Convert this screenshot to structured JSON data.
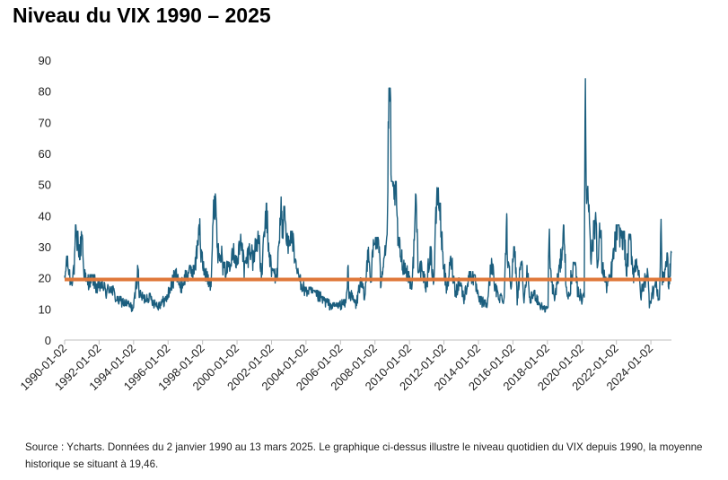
{
  "chart_data": {
    "type": "line",
    "title": "Niveau du VIX 1990 – 2025",
    "xlabel": "",
    "ylabel": "",
    "ylim": [
      0,
      90
    ],
    "y_ticks": [
      0,
      10,
      20,
      30,
      40,
      50,
      60,
      70,
      80,
      90
    ],
    "xlim": [
      "1990-01-02",
      "2025-03-13"
    ],
    "x_ticks": [
      "1990-01-02",
      "1992-01-02",
      "1994-01-02",
      "1996-01-02",
      "1998-01-02",
      "2000-01-02",
      "2002-01-02",
      "2004-01-02",
      "2006-01-02",
      "2008-01-02",
      "2010-01-02",
      "2012-01-02",
      "2014-01-02",
      "2016-01-02",
      "2018-01-02",
      "2020-01-02",
      "2022-01-02",
      "2024-01-02"
    ],
    "grid": false,
    "legend": "none",
    "series": [
      {
        "color": "#1b5e7e",
        "points": [
          [
            "1990-01-02",
            18
          ],
          [
            "1990-02-15",
            26
          ],
          [
            "1990-05-15",
            18
          ],
          [
            "1990-08-01",
            24
          ],
          [
            "1990-08-20",
            36
          ],
          [
            "1990-09-15",
            28
          ],
          [
            "1990-10-10",
            34
          ],
          [
            "1990-11-15",
            26
          ],
          [
            "1991-01-10",
            35
          ],
          [
            "1991-02-01",
            24
          ],
          [
            "1991-04-01",
            18
          ],
          [
            "1991-08-20",
            20
          ],
          [
            "1991-12-01",
            16
          ],
          [
            "1992-03-01",
            18
          ],
          [
            "1992-06-01",
            15
          ],
          [
            "1992-09-01",
            17
          ],
          [
            "1993-01-01",
            13
          ],
          [
            "1993-06-01",
            12
          ],
          [
            "1993-10-01",
            11
          ],
          [
            "1994-01-01",
            10
          ],
          [
            "1994-04-05",
            23
          ],
          [
            "1994-05-01",
            15
          ],
          [
            "1994-08-01",
            13
          ],
          [
            "1994-12-01",
            14
          ],
          [
            "1995-03-01",
            12
          ],
          [
            "1995-06-01",
            11
          ],
          [
            "1995-09-01",
            12
          ],
          [
            "1995-12-01",
            13
          ],
          [
            "1996-03-01",
            17
          ],
          [
            "1996-07-20",
            22
          ],
          [
            "1996-09-01",
            16
          ],
          [
            "1997-01-01",
            20
          ],
          [
            "1997-04-01",
            22
          ],
          [
            "1997-08-01",
            23
          ],
          [
            "1997-10-28",
            38
          ],
          [
            "1997-11-20",
            28
          ],
          [
            "1998-02-01",
            22
          ],
          [
            "1998-05-01",
            20
          ],
          [
            "1998-07-01",
            18
          ],
          [
            "1998-08-31",
            44
          ],
          [
            "1998-10-08",
            46
          ],
          [
            "1998-11-15",
            28
          ],
          [
            "1999-01-15",
            30
          ],
          [
            "1999-03-01",
            24
          ],
          [
            "1999-06-01",
            22
          ],
          [
            "1999-10-15",
            30
          ],
          [
            "2000-01-01",
            24
          ],
          [
            "2000-04-15",
            33
          ],
          [
            "2000-06-01",
            22
          ],
          [
            "2000-10-15",
            30
          ],
          [
            "2000-12-01",
            25
          ],
          [
            "2001-03-22",
            34
          ],
          [
            "2001-06-01",
            20
          ],
          [
            "2001-09-20",
            43
          ],
          [
            "2001-10-15",
            32
          ],
          [
            "2002-01-01",
            22
          ],
          [
            "2002-05-01",
            20
          ],
          [
            "2002-07-24",
            45
          ],
          [
            "2002-08-15",
            34
          ],
          [
            "2002-10-07",
            42
          ],
          [
            "2002-11-15",
            30
          ],
          [
            "2003-01-15",
            34
          ],
          [
            "2003-03-11",
            34
          ],
          [
            "2003-05-01",
            25
          ],
          [
            "2003-08-01",
            20
          ],
          [
            "2003-12-01",
            16
          ],
          [
            "2004-06-01",
            15
          ],
          [
            "2004-12-01",
            13
          ],
          [
            "2005-06-01",
            11
          ],
          [
            "2005-12-01",
            11
          ],
          [
            "2006-05-01",
            12
          ],
          [
            "2006-06-13",
            23
          ],
          [
            "2006-07-01",
            15
          ],
          [
            "2006-12-01",
            11
          ],
          [
            "2007-02-27",
            19
          ],
          [
            "2007-06-01",
            13
          ],
          [
            "2007-08-16",
            31
          ],
          [
            "2007-10-01",
            18
          ],
          [
            "2007-11-20",
            28
          ],
          [
            "2008-01-22",
            32
          ],
          [
            "2008-03-17",
            32
          ],
          [
            "2008-05-01",
            18
          ],
          [
            "2008-07-15",
            28
          ],
          [
            "2008-09-15",
            32
          ],
          [
            "2008-10-24",
            80
          ],
          [
            "2008-11-20",
            80
          ],
          [
            "2008-12-15",
            50
          ],
          [
            "2009-02-01",
            45
          ],
          [
            "2009-03-09",
            50
          ],
          [
            "2009-05-01",
            32
          ],
          [
            "2009-08-01",
            25
          ],
          [
            "2009-12-01",
            21
          ],
          [
            "2010-03-01",
            17
          ],
          [
            "2010-05-20",
            46
          ],
          [
            "2010-07-01",
            25
          ],
          [
            "2010-10-01",
            21
          ],
          [
            "2011-01-01",
            17
          ],
          [
            "2011-03-16",
            29
          ],
          [
            "2011-06-01",
            18
          ],
          [
            "2011-08-08",
            48
          ],
          [
            "2011-10-03",
            43
          ],
          [
            "2011-12-01",
            28
          ],
          [
            "2012-03-01",
            15
          ],
          [
            "2012-06-01",
            26
          ],
          [
            "2012-09-01",
            15
          ],
          [
            "2012-12-01",
            19
          ],
          [
            "2013-03-01",
            13
          ],
          [
            "2013-06-20",
            21
          ],
          [
            "2013-10-01",
            20
          ],
          [
            "2014-01-01",
            13
          ],
          [
            "2014-07-01",
            11
          ],
          [
            "2014-10-15",
            26
          ],
          [
            "2014-12-01",
            17
          ],
          [
            "2015-03-01",
            14
          ],
          [
            "2015-07-01",
            13
          ],
          [
            "2015-08-24",
            41
          ],
          [
            "2015-09-01",
            28
          ],
          [
            "2015-12-01",
            18
          ],
          [
            "2016-01-20",
            28
          ],
          [
            "2016-02-11",
            29
          ],
          [
            "2016-04-01",
            13
          ],
          [
            "2016-06-24",
            26
          ],
          [
            "2016-09-01",
            12
          ],
          [
            "2016-11-04",
            23
          ],
          [
            "2016-12-15",
            12
          ],
          [
            "2017-04-01",
            15
          ],
          [
            "2017-08-01",
            11
          ],
          [
            "2017-11-01",
            10
          ],
          [
            "2018-01-15",
            10
          ],
          [
            "2018-02-05",
            37
          ],
          [
            "2018-03-01",
            22
          ],
          [
            "2018-06-01",
            13
          ],
          [
            "2018-10-10",
            25
          ],
          [
            "2018-12-24",
            36
          ],
          [
            "2019-02-01",
            16
          ],
          [
            "2019-05-01",
            13
          ],
          [
            "2019-05-13",
            20
          ],
          [
            "2019-08-05",
            24
          ],
          [
            "2019-10-01",
            16
          ],
          [
            "2020-01-01",
            13
          ],
          [
            "2020-02-21",
            16
          ],
          [
            "2020-03-16",
            83
          ],
          [
            "2020-04-01",
            50
          ],
          [
            "2020-06-11",
            41
          ],
          [
            "2020-07-15",
            26
          ],
          [
            "2020-10-28",
            40
          ],
          [
            "2020-12-01",
            22
          ],
          [
            "2021-01-27",
            37
          ],
          [
            "2021-03-01",
            24
          ],
          [
            "2021-06-01",
            17
          ],
          [
            "2021-09-01",
            20
          ],
          [
            "2021-12-01",
            30
          ],
          [
            "2022-01-24",
            36
          ],
          [
            "2022-03-07",
            35
          ],
          [
            "2022-05-01",
            33
          ],
          [
            "2022-06-13",
            34
          ],
          [
            "2022-08-01",
            21
          ],
          [
            "2022-10-12",
            33
          ],
          [
            "2023-01-01",
            21
          ],
          [
            "2023-03-13",
            26
          ],
          [
            "2023-06-01",
            14
          ],
          [
            "2023-10-20",
            22
          ],
          [
            "2023-12-01",
            12
          ],
          [
            "2024-04-19",
            18
          ],
          [
            "2024-07-01",
            12
          ],
          [
            "2024-08-05",
            38
          ],
          [
            "2024-09-01",
            18
          ],
          [
            "2024-12-18",
            27
          ],
          [
            "2025-01-15",
            16
          ],
          [
            "2025-03-13",
            28
          ]
        ]
      }
    ],
    "reference_line": {
      "value": 19.46,
      "color": "#e0783a"
    }
  },
  "source": "Source : Ycharts. Données du 2 janvier 1990 au 13 mars 2025. Le graphique ci-dessus illustre le niveau quotidien du VIX depuis 1990, la moyenne historique se situant à 19,46."
}
